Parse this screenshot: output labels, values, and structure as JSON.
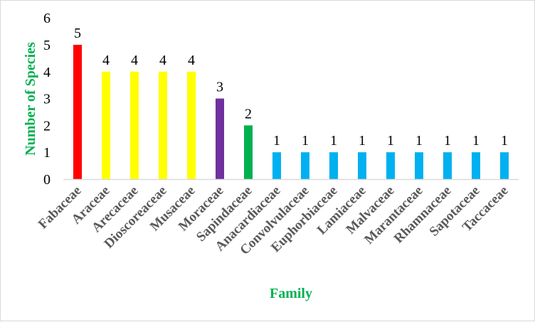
{
  "chart_data": {
    "type": "bar",
    "title": "",
    "xlabel": "Family",
    "ylabel": "Number of Species",
    "ylim": [
      0,
      6
    ],
    "yticks": [
      "0",
      "1",
      "2",
      "3",
      "4",
      "5",
      "6"
    ],
    "grid": false,
    "categories": [
      "Fabaceae",
      "Araceae",
      "Arecaceae",
      "Dioscoreaceae",
      "Musaceae",
      "Moraceae",
      "Sapindaceae",
      "Anacardiaceae",
      "Convolvulaceae",
      "Euphorbiaceae",
      "Lamiaceae",
      "Malvaceae",
      "Marantaceae",
      "Rhamnaceae",
      "Sapotaceae",
      "Taccaceae"
    ],
    "values": [
      5,
      4,
      4,
      4,
      4,
      3,
      2,
      1,
      1,
      1,
      1,
      1,
      1,
      1,
      1,
      1
    ],
    "colors": [
      "#ff0000",
      "#ffff00",
      "#ffff00",
      "#ffff00",
      "#ffff00",
      "#7030a0",
      "#00b050",
      "#00b0f0",
      "#00b0f0",
      "#00b0f0",
      "#00b0f0",
      "#00b0f0",
      "#00b0f0",
      "#00b0f0",
      "#00b0f0",
      "#00b0f0"
    ],
    "data_labels": true
  },
  "colors": {
    "axis_title": "#00b050",
    "tick_label": "#595959",
    "axis_line": "#d9d9d9"
  }
}
